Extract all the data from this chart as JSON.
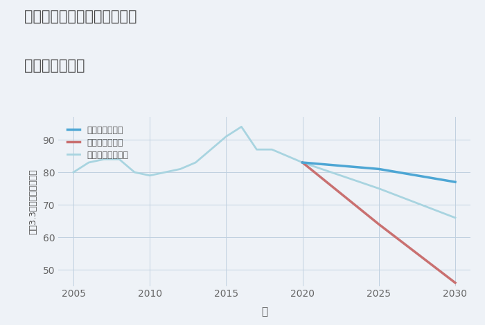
{
  "title_line1": "兵庫県神戸市兵庫区楠谷町の",
  "title_line2": "土地の価格推移",
  "xlabel": "年",
  "ylabel": "坪（3.3㎡）単価（万円）",
  "background_color": "#eef2f7",
  "plot_background": "#eef2f7",
  "ylim": [
    45,
    97
  ],
  "xlim": [
    2004,
    2031
  ],
  "yticks": [
    50,
    60,
    70,
    80,
    90
  ],
  "xticks": [
    2005,
    2010,
    2015,
    2020,
    2025,
    2030
  ],
  "good_scenario": {
    "x": [
      2020,
      2025,
      2030
    ],
    "y": [
      83,
      81,
      77
    ],
    "color": "#4da6d4",
    "label": "グッドシナリオ",
    "linewidth": 2.5
  },
  "bad_scenario": {
    "x": [
      2020,
      2025,
      2030
    ],
    "y": [
      83,
      64,
      46
    ],
    "color": "#c97070",
    "label": "バッドシナリオ",
    "linewidth": 2.5
  },
  "normal_scenario_historical": {
    "x": [
      2005,
      2006,
      2007,
      2008,
      2009,
      2010,
      2011,
      2012,
      2013,
      2014,
      2015,
      2016,
      2017,
      2018,
      2019,
      2020
    ],
    "y": [
      80,
      83,
      84,
      84,
      80,
      79,
      80,
      81,
      83,
      87,
      91,
      94,
      87,
      87,
      85,
      83
    ],
    "color": "#a8d4e0",
    "label": "ノーマルシナリオ",
    "linewidth": 2.0
  },
  "normal_scenario_future": {
    "x": [
      2020,
      2025,
      2030
    ],
    "y": [
      83,
      75,
      66
    ],
    "color": "#a8d4e0",
    "linewidth": 2.0
  }
}
